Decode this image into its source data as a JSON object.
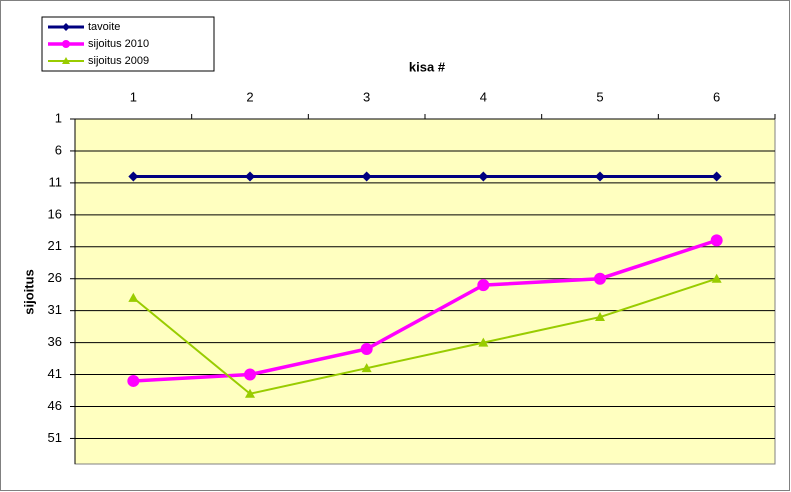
{
  "chart_data": {
    "type": "line",
    "x_label": "kisa #",
    "y_label": "sijoitus",
    "categories": [
      "1",
      "2",
      "3",
      "4",
      "5",
      "6"
    ],
    "series": [
      {
        "name": "tavoite",
        "color": "#000080",
        "marker": "diamond",
        "values": [
          10,
          10,
          10,
          10,
          10,
          10
        ]
      },
      {
        "name": "sijoitus 2010",
        "color": "#ff00ff",
        "marker": "circle",
        "values": [
          42,
          41,
          37,
          27,
          26,
          20
        ]
      },
      {
        "name": "sijoitus 2009",
        "color": "#99cc00",
        "marker": "triangle",
        "values": [
          29,
          44,
          40,
          36,
          32,
          26
        ]
      }
    ],
    "ylim": [
      1,
      55
    ],
    "yticks": [
      1,
      6,
      11,
      16,
      21,
      26,
      31,
      36,
      41,
      46,
      51
    ],
    "y_inverted": true,
    "grid": true,
    "legend": "top-left",
    "plot_background": "#ffffc0"
  }
}
